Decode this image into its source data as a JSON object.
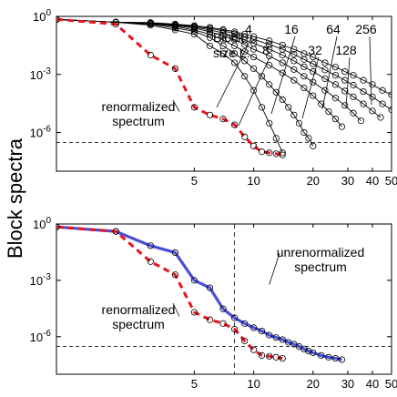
{
  "figure": {
    "ylabel": "Block spectra"
  },
  "chart_data": [
    {
      "type": "line",
      "scale": {
        "x": "log",
        "y": "log"
      },
      "xlim": [
        1,
        50
      ],
      "ylim": [
        1e-08,
        1
      ],
      "xticks": [
        5,
        10,
        20,
        30,
        40,
        50
      ],
      "yticks": [
        {
          "value": 1,
          "mantissa": "10",
          "exp": "0"
        },
        {
          "value": 0.001,
          "mantissa": "10",
          "exp": "-3"
        },
        {
          "value": 1e-06,
          "mantissa": "10",
          "exp": "-6"
        }
      ],
      "grid": false,
      "threshold": 3e-07,
      "legend_title": "Block\nsize L:",
      "series": [
        {
          "name": "4",
          "x": [
            1,
            2,
            3,
            4,
            5,
            6,
            7,
            8,
            9,
            10,
            11,
            12,
            13,
            14
          ],
          "y": [
            0.7,
            0.5,
            0.35,
            0.2,
            0.12,
            0.03,
            0.012,
            0.004,
            0.0008,
            0.00015,
            2e-05,
            3e-06,
            5e-07,
            9e-08
          ]
        },
        {
          "name": "8",
          "x": [
            1,
            2,
            3,
            4,
            5,
            6,
            7,
            8,
            9,
            10,
            11,
            12,
            13,
            14,
            15,
            16,
            17,
            18,
            19,
            20
          ],
          "y": [
            0.7,
            0.5,
            0.4,
            0.25,
            0.17,
            0.08,
            0.03,
            0.012,
            0.005,
            0.002,
            0.0008,
            0.0003,
            0.00012,
            5e-05,
            2e-05,
            8e-06,
            3e-06,
            1e-06,
            5e-07,
            2e-07
          ]
        },
        {
          "name": "16",
          "x": [
            1,
            2,
            3,
            4,
            5,
            6,
            7,
            8,
            9,
            10,
            12,
            14,
            16,
            18,
            20,
            22,
            24,
            26,
            28
          ],
          "y": [
            0.7,
            0.5,
            0.42,
            0.3,
            0.2,
            0.12,
            0.06,
            0.03,
            0.015,
            0.008,
            0.003,
            0.0012,
            0.0005,
            0.0002,
            8e-05,
            3e-05,
            1.2e-05,
            5e-06,
            2e-06
          ]
        },
        {
          "name": "32",
          "x": [
            1,
            2,
            3,
            4,
            5,
            6,
            7,
            8,
            9,
            10,
            12,
            14,
            16,
            18,
            20,
            23,
            26,
            29,
            32,
            35
          ],
          "y": [
            0.7,
            0.5,
            0.45,
            0.33,
            0.25,
            0.16,
            0.1,
            0.06,
            0.035,
            0.02,
            0.009,
            0.004,
            0.0018,
            0.0008,
            0.0004,
            0.00015,
            6e-05,
            2.5e-05,
            1e-05,
            4e-06
          ]
        },
        {
          "name": "64",
          "x": [
            1,
            2,
            3,
            4,
            5,
            6,
            7,
            8,
            9,
            10,
            12,
            14,
            16,
            18,
            20,
            23,
            26,
            29,
            32,
            36,
            40,
            44
          ],
          "y": [
            0.7,
            0.5,
            0.46,
            0.36,
            0.28,
            0.2,
            0.14,
            0.09,
            0.06,
            0.04,
            0.02,
            0.01,
            0.005,
            0.0025,
            0.0014,
            0.0006,
            0.0003,
            0.00014,
            7e-05,
            3e-05,
            1.3e-05,
            6e-06
          ]
        },
        {
          "name": "128",
          "x": [
            1,
            2,
            3,
            4,
            5,
            6,
            7,
            8,
            9,
            10,
            12,
            14,
            16,
            18,
            20,
            23,
            26,
            29,
            32,
            36,
            40,
            45,
            50
          ],
          "y": [
            0.7,
            0.5,
            0.47,
            0.38,
            0.3,
            0.24,
            0.18,
            0.13,
            0.09,
            0.065,
            0.035,
            0.02,
            0.011,
            0.006,
            0.0035,
            0.0017,
            0.0009,
            0.0005,
            0.00028,
            0.00013,
            7e-05,
            3e-05,
            1.5e-05
          ]
        },
        {
          "name": "256",
          "x": [
            1,
            2,
            3,
            4,
            5,
            6,
            7,
            8,
            9,
            10,
            12,
            14,
            16,
            18,
            20,
            23,
            26,
            29,
            32,
            36,
            40,
            45,
            50
          ],
          "y": [
            0.7,
            0.5,
            0.48,
            0.4,
            0.33,
            0.27,
            0.21,
            0.16,
            0.12,
            0.09,
            0.055,
            0.033,
            0.02,
            0.012,
            0.008,
            0.004,
            0.0024,
            0.0014,
            0.0009,
            0.0005,
            0.0003,
            0.00015,
            9e-05
          ]
        },
        {
          "name": "",
          "style": "red-dashed",
          "x": [
            1,
            2,
            3,
            4,
            5,
            6,
            7,
            8,
            9,
            10,
            11,
            12,
            13,
            14
          ],
          "y": [
            0.7,
            0.4,
            0.01,
            0.002,
            2e-05,
            8e-06,
            5e-06,
            2.5e-06,
            6e-07,
            2e-07,
            1e-07,
            9e-08,
            8e-08,
            7e-08
          ]
        }
      ],
      "annotations": [
        {
          "text": "renormalized\nspectrum",
          "x": 4.2,
          "y": 1.2e-05
        }
      ]
    },
    {
      "type": "line",
      "scale": {
        "x": "log",
        "y": "log"
      },
      "xlim": [
        1,
        50
      ],
      "ylim": [
        1e-08,
        1
      ],
      "xticks": [
        5,
        10,
        20,
        30,
        40,
        50
      ],
      "yticks": [
        {
          "value": 1,
          "mantissa": "10",
          "exp": "0"
        },
        {
          "value": 0.001,
          "mantissa": "10",
          "exp": "-3"
        },
        {
          "value": 1e-06,
          "mantissa": "10",
          "exp": "-6"
        }
      ],
      "grid": false,
      "threshold": 3e-07,
      "vline": 8,
      "series": [
        {
          "name": "",
          "style": "blue-solid",
          "x": [
            1,
            2,
            3,
            4,
            5,
            6,
            7,
            8,
            9,
            10,
            11,
            12,
            13,
            14,
            15,
            16,
            17,
            18,
            19,
            20,
            22,
            24,
            26,
            28
          ],
          "y": [
            0.7,
            0.4,
            0.07,
            0.03,
            0.001,
            0.0004,
            3e-05,
            1e-05,
            5e-06,
            3e-06,
            2e-06,
            1.2e-06,
            9e-07,
            7e-07,
            5e-07,
            4e-07,
            3e-07,
            2.2e-07,
            1.7e-07,
            1.4e-07,
            1e-07,
            8e-08,
            7e-08,
            6e-08
          ]
        },
        {
          "name": "",
          "style": "red-dashed",
          "x": [
            1,
            2,
            3,
            4,
            5,
            6,
            7,
            8,
            9,
            10,
            11,
            12,
            13,
            14
          ],
          "y": [
            0.7,
            0.4,
            0.01,
            0.002,
            2e-05,
            8e-06,
            5e-06,
            2.5e-06,
            6e-07,
            2e-07,
            1e-07,
            9e-08,
            8e-08,
            7e-08
          ]
        }
      ],
      "annotations": [
        {
          "text": "unrenormalized\nspectrum",
          "x": 12,
          "y": 0.0006
        },
        {
          "text": "renormalized\nspectrum",
          "x": 4.2,
          "y": 1.2e-05
        }
      ]
    }
  ]
}
